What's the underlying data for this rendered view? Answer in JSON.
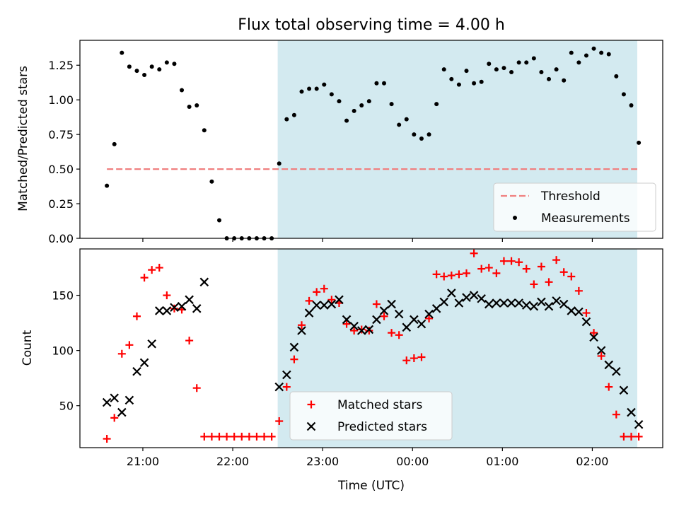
{
  "chart_data": [
    {
      "type": "scatter",
      "title": "Flux total observing time = 4.00 h",
      "xlabel": "",
      "ylabel": "Matched/Predicted stars",
      "ylim": [
        0,
        1.43
      ],
      "xlim": [
        "20:18",
        "02:47"
      ],
      "x_ticks": [
        "21:00",
        "22:00",
        "23:00",
        "00:00",
        "01:00",
        "02:00"
      ],
      "y_ticks": [
        "0.00",
        "0.25",
        "0.50",
        "0.75",
        "1.00",
        "1.25"
      ],
      "shaded_region": {
        "x": [
          "22:30",
          "02:30"
        ],
        "color": "#d3eaf0"
      },
      "threshold": {
        "name": "Threshold",
        "value": 0.5,
        "x": [
          "20:36",
          "02:30"
        ],
        "color": "#f08080",
        "style": "dashed"
      },
      "legend": {
        "position": "lower-right",
        "entries": [
          "Threshold",
          "Measurements"
        ]
      },
      "series": [
        {
          "name": "Measurements",
          "color": "#000000",
          "marker": "dot",
          "x": [
            "20:36",
            "20:41",
            "20:46",
            "20:51",
            "20:56",
            "21:01",
            "21:06",
            "21:11",
            "21:16",
            "21:21",
            "21:26",
            "21:31",
            "21:36",
            "21:41",
            "21:46",
            "21:51",
            "21:56",
            "22:01",
            "22:06",
            "22:11",
            "22:16",
            "22:21",
            "22:26",
            "22:31",
            "22:36",
            "22:41",
            "22:46",
            "22:51",
            "22:56",
            "23:01",
            "23:06",
            "23:11",
            "23:16",
            "23:21",
            "23:26",
            "23:31",
            "23:36",
            "23:41",
            "23:46",
            "23:51",
            "23:56",
            "00:01",
            "00:06",
            "00:11",
            "00:16",
            "00:21",
            "00:26",
            "00:31",
            "00:36",
            "00:41",
            "00:46",
            "00:51",
            "00:56",
            "01:01",
            "01:06",
            "01:11",
            "01:16",
            "01:21",
            "01:26",
            "01:31",
            "01:36",
            "01:41",
            "01:46",
            "01:51",
            "01:56",
            "02:01",
            "02:06",
            "02:11",
            "02:16",
            "02:21",
            "02:26",
            "02:31"
          ],
          "y": [
            0.38,
            0.68,
            1.34,
            1.24,
            1.21,
            1.18,
            1.24,
            1.22,
            1.27,
            1.26,
            1.07,
            0.95,
            0.96,
            0.78,
            0.41,
            0.13,
            0,
            0,
            0,
            0,
            0,
            0,
            0,
            0.54,
            0.86,
            0.89,
            1.06,
            1.08,
            1.08,
            1.11,
            1.04,
            0.99,
            0.85,
            0.92,
            0.96,
            0.99,
            1.12,
            1.12,
            0.97,
            0.82,
            0.86,
            0.75,
            0.72,
            0.75,
            0.97,
            1.22,
            1.15,
            1.11,
            1.21,
            1.12,
            1.13,
            1.26,
            1.22,
            1.23,
            1.2,
            1.27,
            1.27,
            1.3,
            1.2,
            1.15,
            1.22,
            1.14,
            1.34,
            1.27,
            1.32,
            1.37,
            1.34,
            1.33,
            1.17,
            1.04,
            0.96,
            0.69
          ]
        }
      ]
    },
    {
      "type": "scatter",
      "title": "",
      "xlabel": "Time (UTC)",
      "ylabel": "Count",
      "ylim": [
        12,
        192
      ],
      "xlim": [
        "20:18",
        "02:47"
      ],
      "x_ticks": [
        "21:00",
        "22:00",
        "23:00",
        "00:00",
        "01:00",
        "02:00"
      ],
      "y_ticks": [
        "50",
        "100",
        "150"
      ],
      "shaded_region": {
        "x": [
          "22:30",
          "02:30"
        ],
        "color": "#d3eaf0"
      },
      "legend": {
        "position": "lower-center",
        "entries": [
          "Matched stars",
          "Predicted stars"
        ]
      },
      "series": [
        {
          "name": "Matched stars",
          "color": "#ff0000",
          "marker": "plus",
          "x": [
            "20:36",
            "20:41",
            "20:46",
            "20:51",
            "20:56",
            "21:01",
            "21:06",
            "21:11",
            "21:16",
            "21:21",
            "21:26",
            "21:31",
            "21:36",
            "21:41",
            "21:46",
            "21:51",
            "21:56",
            "22:01",
            "22:06",
            "22:11",
            "22:16",
            "22:21",
            "22:26",
            "22:31",
            "22:36",
            "22:41",
            "22:46",
            "22:51",
            "22:56",
            "23:01",
            "23:06",
            "23:11",
            "23:16",
            "23:21",
            "23:26",
            "23:31",
            "23:36",
            "23:41",
            "23:46",
            "23:51",
            "23:56",
            "00:01",
            "00:06",
            "00:11",
            "00:16",
            "00:21",
            "00:26",
            "00:31",
            "00:36",
            "00:41",
            "00:46",
            "00:51",
            "00:56",
            "01:01",
            "01:06",
            "01:11",
            "01:16",
            "01:21",
            "01:26",
            "01:31",
            "01:36",
            "01:41",
            "01:46",
            "01:51",
            "01:56",
            "02:01",
            "02:06",
            "02:11",
            "02:16",
            "02:21",
            "02:26",
            "02:31"
          ],
          "y": [
            20,
            39,
            97,
            105,
            131,
            166,
            173,
            175,
            150,
            138,
            137,
            109,
            66,
            22,
            22,
            22,
            22,
            22,
            22,
            22,
            22,
            22,
            22,
            36,
            67,
            92,
            123,
            145,
            153,
            156,
            146,
            143,
            124,
            118,
            119,
            118,
            142,
            131,
            116,
            114,
            91,
            93,
            94,
            129,
            169,
            167,
            168,
            169,
            170,
            188,
            174,
            175,
            170,
            181,
            181,
            180,
            174,
            160,
            176,
            162,
            182,
            171,
            167,
            154,
            134,
            116,
            95,
            67,
            42,
            22,
            22,
            22
          ],
          "extra_points_note": ""
        },
        {
          "name": "Predicted stars",
          "color": "#000000",
          "marker": "x",
          "x": [
            "20:36",
            "20:41",
            "20:46",
            "20:51",
            "20:56",
            "21:01",
            "21:06",
            "21:11",
            "21:16",
            "21:21",
            "21:26",
            "21:31",
            "21:36",
            "21:41",
            "22:31",
            "22:36",
            "22:41",
            "22:46",
            "22:51",
            "22:56",
            "23:01",
            "23:06",
            "23:11",
            "23:16",
            "23:21",
            "23:26",
            "23:31",
            "23:36",
            "23:41",
            "23:46",
            "23:51",
            "23:56",
            "00:01",
            "00:06",
            "00:11",
            "00:16",
            "00:21",
            "00:26",
            "00:31",
            "00:36",
            "00:41",
            "00:46",
            "00:51",
            "00:56",
            "01:01",
            "01:06",
            "01:11",
            "01:16",
            "01:21",
            "01:26",
            "01:31",
            "01:36",
            "01:41",
            "01:46",
            "01:51",
            "01:56",
            "02:01",
            "02:06",
            "02:11",
            "02:16",
            "02:21",
            "02:26",
            "02:31"
          ],
          "y": [
            53,
            57,
            44,
            55,
            81,
            89,
            106,
            136,
            136,
            139,
            140,
            146,
            138,
            162,
            67,
            78,
            103,
            118,
            134,
            141,
            141,
            142,
            146,
            128,
            122,
            118,
            119,
            128,
            136,
            142,
            133,
            121,
            128,
            124,
            133,
            138,
            144,
            152,
            143,
            148,
            150,
            147,
            142,
            143,
            143,
            143,
            143,
            141,
            140,
            144,
            140,
            145,
            142,
            136,
            135,
            126,
            112,
            100,
            87,
            81,
            64,
            44,
            33
          ]
        }
      ]
    }
  ]
}
